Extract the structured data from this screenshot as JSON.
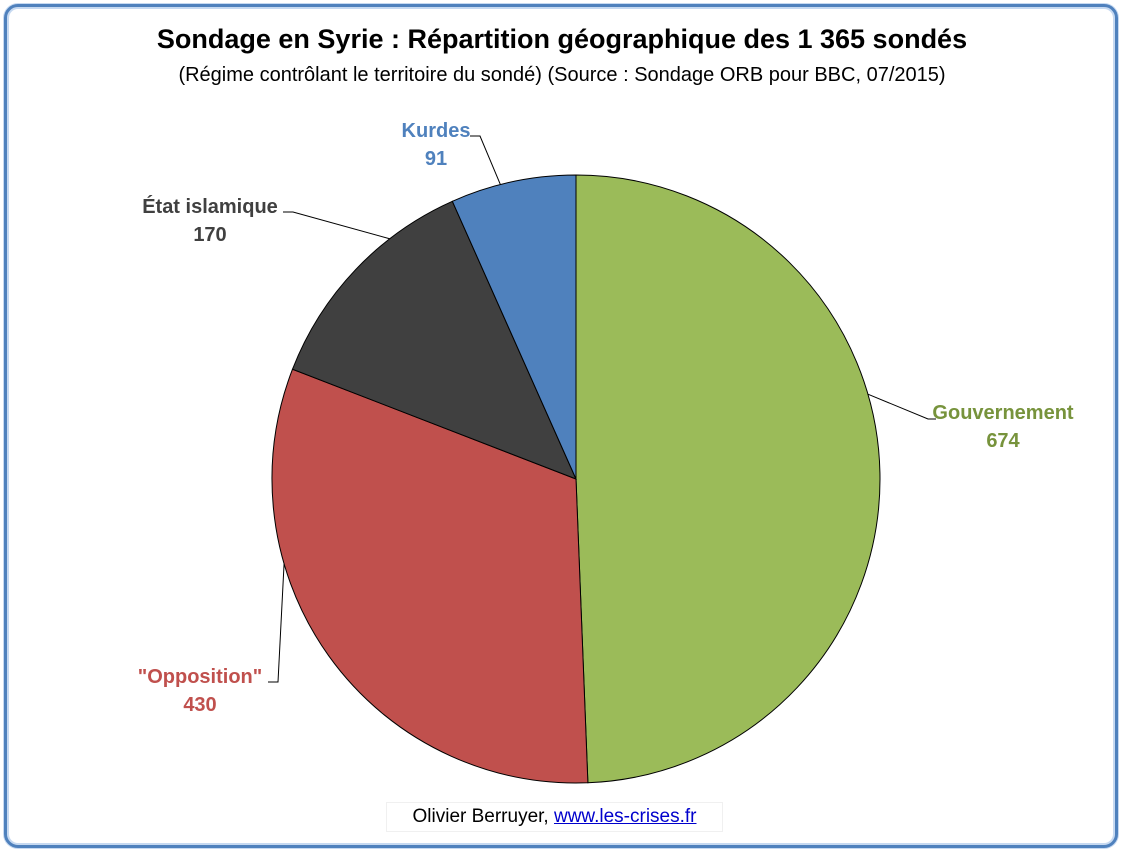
{
  "chart_data": {
    "type": "pie",
    "title": "Sondage en Syrie : Répartition géographique des 1 365 sondés",
    "subtitle": "(Régime contrôlant le territoire du sondé) (Source : Sondage ORB pour BBC, 07/2015)",
    "categories": [
      "Gouvernement",
      "\"Opposition\"",
      "État islamique",
      "Kurdes"
    ],
    "values": [
      674,
      430,
      170,
      91
    ],
    "colors": [
      "#9bbb59",
      "#c0504d",
      "#404040",
      "#4f81bd"
    ],
    "label_colors": [
      "#77933c",
      "#c0504d",
      "#404040",
      "#4f81bd"
    ]
  },
  "credit": {
    "author": "Olivier Berruyer,",
    "link": "www.les-crises.fr"
  }
}
